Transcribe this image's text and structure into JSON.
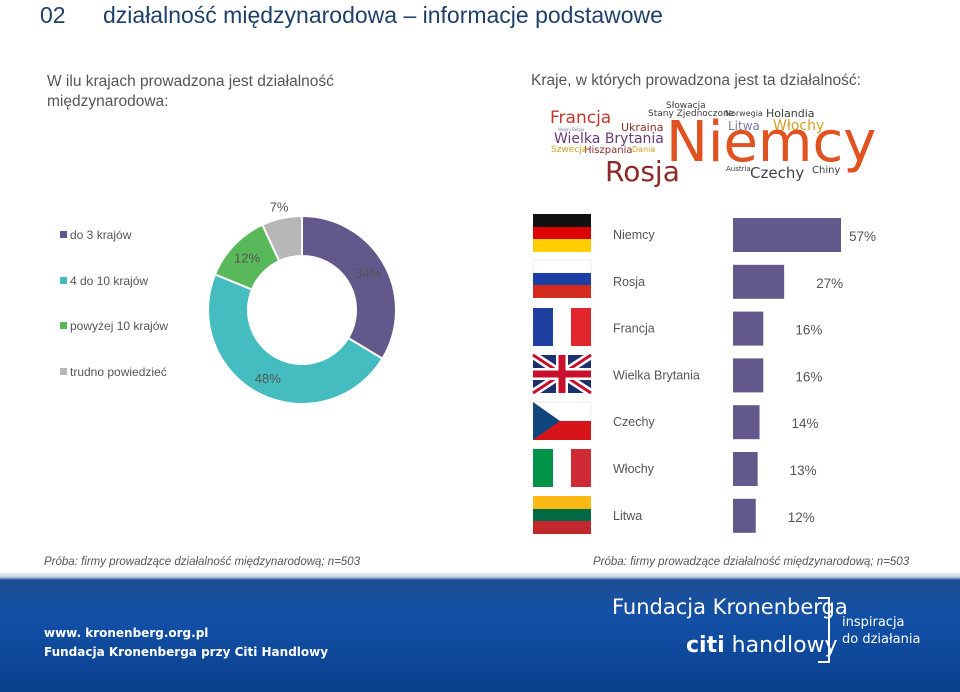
{
  "header": {
    "number": "02",
    "title": "działalność międzynarodowa – informacje podstawowe"
  },
  "questions": {
    "left": "W ilu krajach prowadzona jest działalność międzynarodowa:",
    "right": "Kraje, w których prowadzona jest ta działalność:"
  },
  "word_cloud": [
    {
      "text": "Niemcy",
      "color": "#e0521f"
    },
    {
      "text": "Rosja",
      "color": "#8b2a26"
    },
    {
      "text": "Francja",
      "color": "#c0392b"
    },
    {
      "text": "Wielka Brytania",
      "color": "#6a3a7a"
    },
    {
      "text": "Czechy",
      "color": "#444444"
    },
    {
      "text": "Włochy",
      "color": "#d2a023"
    },
    {
      "text": "Holandia",
      "color": "#3b3b3b"
    },
    {
      "text": "Litwa",
      "color": "#7b7fa8"
    },
    {
      "text": "Ukraina",
      "color": "#8b2a26"
    },
    {
      "text": "Hiszpania",
      "color": "#8b2a26"
    },
    {
      "text": "Stany Zjednoczone",
      "color": "#3b3b3b"
    },
    {
      "text": "Słowacja",
      "color": "#3b3b3b"
    },
    {
      "text": "Norwegia",
      "color": "#3b3b3b"
    },
    {
      "text": "Szwecja",
      "color": "#d2a023"
    },
    {
      "text": "Dania",
      "color": "#d2a023"
    },
    {
      "text": "Chiny",
      "color": "#3b3b3b"
    },
    {
      "text": "Austria",
      "color": "#3b3b3b"
    },
    {
      "text": "Węgry",
      "color": "#7b7fa8"
    },
    {
      "text": "Belgia",
      "color": "#7b7fa8"
    }
  ],
  "flags": [
    {
      "country": "Niemcy",
      "flag": "flag-de-icon"
    },
    {
      "country": "Rosja",
      "flag": "flag-ru-icon"
    },
    {
      "country": "Francja",
      "flag": "flag-fr-icon"
    },
    {
      "country": "Wielka Brytania",
      "flag": "flag-gb-icon"
    },
    {
      "country": "Czechy",
      "flag": "flag-cz-icon"
    },
    {
      "country": "Włochy",
      "flag": "flag-it-icon"
    },
    {
      "country": "Litwa",
      "flag": "flag-lt-icon"
    }
  ],
  "chart_data": [
    {
      "type": "pie",
      "variant": "donut",
      "legend": "left",
      "categories": [
        "do 3 krajów",
        "4 do 10 krajów",
        "powyżej 10 krajów",
        "trudno powiedzieć"
      ],
      "values": [
        34,
        48,
        12,
        7
      ],
      "labels": [
        "34%",
        "48%",
        "12%",
        "7%"
      ],
      "colors": [
        "#62588c",
        "#45bdc0",
        "#58b85a",
        "#b7b7b7"
      ]
    },
    {
      "type": "bar",
      "orientation": "horizontal",
      "categories": [
        "Niemcy",
        "Rosja",
        "Francja",
        "Wielka Brytania",
        "Czechy",
        "Włochy",
        "Litwa"
      ],
      "values": [
        57,
        27,
        16,
        16,
        14,
        13,
        12
      ],
      "labels": [
        "57%",
        "27%",
        "16%",
        "16%",
        "14%",
        "13%",
        "12%"
      ],
      "color": "#62588c"
    }
  ],
  "footnotes": {
    "left": "Próba: firmy prowadzące działalność międzynarodową; n=503",
    "right": "Próba: firmy prowadzące działalność międzynarodową; n=503"
  },
  "footer": {
    "url": "www. kronenberg.org.pl",
    "org": "Fundacja Kronenberga przy Citi Handlowy",
    "logo_name": "Fundacja Kronenberga",
    "logo_citi": "citi",
    "logo_handlowy": "handlowy",
    "slogan_line1": "inspiracja",
    "slogan_line2": "do działania"
  }
}
